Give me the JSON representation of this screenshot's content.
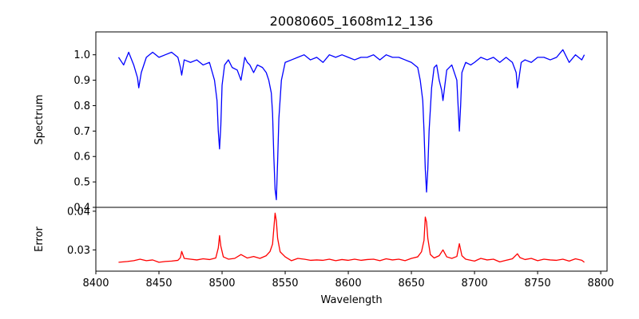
{
  "chart_data": [
    {
      "type": "line",
      "title": "20080605_1608m12_136",
      "ylabel": "Spectrum",
      "xlim": [
        8400,
        8805
      ],
      "ylim": [
        0.4,
        1.09
      ],
      "yticks": [
        0.4,
        0.5,
        0.6,
        0.7,
        0.8,
        0.9,
        1.0
      ],
      "ytick_labels": [
        "0.4",
        "0.5",
        "0.6",
        "0.7",
        "0.8",
        "0.9",
        "1.0"
      ],
      "grid": false,
      "series": [
        {
          "color": "#0000ff",
          "x": [
            8418,
            8422,
            8426,
            8430,
            8433,
            8434,
            8436,
            8440,
            8445,
            8450,
            8455,
            8460,
            8465,
            8467,
            8468,
            8470,
            8475,
            8480,
            8485,
            8490,
            8494,
            8496,
            8497,
            8498,
            8499,
            8500,
            8502,
            8505,
            8508,
            8512,
            8515,
            8518,
            8520,
            8522,
            8525,
            8528,
            8532,
            8535,
            8537,
            8539,
            8540,
            8541,
            8542,
            8543,
            8544,
            8545,
            8547,
            8550,
            8555,
            8560,
            8565,
            8570,
            8575,
            8580,
            8585,
            8590,
            8595,
            8600,
            8605,
            8610,
            8615,
            8620,
            8625,
            8630,
            8635,
            8640,
            8645,
            8650,
            8655,
            8657,
            8659,
            8660,
            8661,
            8662,
            8663,
            8664,
            8666,
            8668,
            8670,
            8672,
            8674,
            8675,
            8676,
            8678,
            8682,
            8686,
            8687,
            8688,
            8689,
            8690,
            8693,
            8697,
            8700,
            8705,
            8710,
            8715,
            8720,
            8725,
            8730,
            8733,
            8734,
            8735,
            8737,
            8740,
            8745,
            8750,
            8755,
            8760,
            8765,
            8770,
            8775,
            8780,
            8785,
            8787
          ],
          "y": [
            0.99,
            0.96,
            1.01,
            0.96,
            0.91,
            0.87,
            0.93,
            0.99,
            1.01,
            0.99,
            1.0,
            1.01,
            0.99,
            0.95,
            0.92,
            0.98,
            0.97,
            0.98,
            0.96,
            0.97,
            0.9,
            0.82,
            0.7,
            0.63,
            0.72,
            0.88,
            0.96,
            0.98,
            0.95,
            0.94,
            0.9,
            0.99,
            0.97,
            0.96,
            0.93,
            0.96,
            0.95,
            0.93,
            0.9,
            0.85,
            0.77,
            0.6,
            0.47,
            0.43,
            0.58,
            0.75,
            0.9,
            0.97,
            0.98,
            0.99,
            1.0,
            0.98,
            0.99,
            0.97,
            1.0,
            0.99,
            1.0,
            0.99,
            0.98,
            0.99,
            0.99,
            1.0,
            0.98,
            1.0,
            0.99,
            0.99,
            0.98,
            0.97,
            0.95,
            0.9,
            0.82,
            0.7,
            0.55,
            0.46,
            0.55,
            0.7,
            0.87,
            0.95,
            0.96,
            0.9,
            0.86,
            0.82,
            0.86,
            0.94,
            0.96,
            0.9,
            0.8,
            0.7,
            0.8,
            0.93,
            0.97,
            0.96,
            0.97,
            0.99,
            0.98,
            0.99,
            0.97,
            0.99,
            0.97,
            0.93,
            0.87,
            0.9,
            0.97,
            0.98,
            0.97,
            0.99,
            0.99,
            0.98,
            0.99,
            1.02,
            0.97,
            1.0,
            0.98,
            1.0
          ]
        }
      ]
    },
    {
      "type": "line",
      "xlabel": "Wavelength",
      "ylabel": "Error",
      "xlim": [
        8400,
        8805
      ],
      "ylim": [
        0.0245,
        0.041
      ],
      "xticks": [
        8400,
        8450,
        8500,
        8550,
        8600,
        8650,
        8700,
        8750,
        8800
      ],
      "xtick_labels": [
        "8400",
        "8450",
        "8500",
        "8550",
        "8600",
        "8650",
        "8700",
        "8750",
        "8800"
      ],
      "yticks": [
        0.03,
        0.04
      ],
      "ytick_labels": [
        "0.03",
        "0.04"
      ],
      "grid": false,
      "series": [
        {
          "color": "#ff0000",
          "x": [
            8418,
            8425,
            8430,
            8435,
            8440,
            8445,
            8450,
            8455,
            8460,
            8465,
            8467,
            8468,
            8470,
            8475,
            8480,
            8485,
            8490,
            8495,
            8497,
            8498,
            8499,
            8501,
            8505,
            8510,
            8515,
            8520,
            8525,
            8530,
            8535,
            8538,
            8540,
            8541,
            8542,
            8543,
            8544,
            8546,
            8550,
            8555,
            8560,
            8565,
            8570,
            8575,
            8580,
            8585,
            8590,
            8595,
            8600,
            8605,
            8610,
            8615,
            8620,
            8625,
            8630,
            8635,
            8640,
            8645,
            8650,
            8655,
            8658,
            8660,
            8661,
            8662,
            8663,
            8665,
            8668,
            8672,
            8675,
            8678,
            8682,
            8686,
            8688,
            8690,
            8693,
            8700,
            8705,
            8710,
            8715,
            8720,
            8725,
            8730,
            8734,
            8736,
            8740,
            8745,
            8750,
            8755,
            8760,
            8765,
            8770,
            8775,
            8780,
            8785,
            8787
          ],
          "y": [
            0.0268,
            0.027,
            0.0272,
            0.0276,
            0.0272,
            0.0274,
            0.0268,
            0.027,
            0.0271,
            0.0273,
            0.028,
            0.0296,
            0.0278,
            0.0276,
            0.0274,
            0.0277,
            0.0275,
            0.0279,
            0.0305,
            0.0337,
            0.031,
            0.0282,
            0.0276,
            0.0278,
            0.0288,
            0.0279,
            0.0283,
            0.0278,
            0.0285,
            0.0296,
            0.0315,
            0.0355,
            0.0395,
            0.0375,
            0.033,
            0.0295,
            0.0282,
            0.0272,
            0.0278,
            0.0276,
            0.0273,
            0.0274,
            0.0273,
            0.0276,
            0.0272,
            0.0275,
            0.0273,
            0.0276,
            0.0273,
            0.0275,
            0.0276,
            0.0272,
            0.0277,
            0.0274,
            0.0276,
            0.0272,
            0.0278,
            0.0282,
            0.0295,
            0.0325,
            0.0385,
            0.0372,
            0.033,
            0.0288,
            0.0279,
            0.0285,
            0.03,
            0.0282,
            0.0278,
            0.0283,
            0.0316,
            0.0285,
            0.0276,
            0.0271,
            0.0278,
            0.0274,
            0.0276,
            0.0269,
            0.0273,
            0.0277,
            0.029,
            0.028,
            0.0275,
            0.0278,
            0.0272,
            0.0276,
            0.0274,
            0.0273,
            0.0276,
            0.0271,
            0.0277,
            0.0273,
            0.0268
          ]
        }
      ]
    }
  ]
}
